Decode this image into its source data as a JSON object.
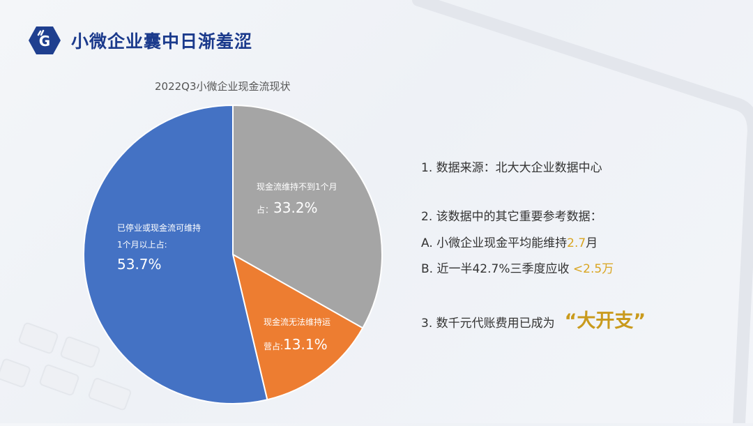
{
  "header": {
    "title": "小微企业囊中日渐羞涩",
    "logo_icon": "hexagon-hand-g-logo",
    "logo_color": "#1f3f8f"
  },
  "chart_data": {
    "type": "pie",
    "title": "2022Q3小微企业现金流现状",
    "start_angle_deg": 0,
    "direction": "clockwise",
    "slices": [
      {
        "name": "现金流维持不到1个月",
        "value": 33.2,
        "color": "#a5a5a5",
        "label_line1": "现金流维持不到1个月",
        "label_prefix": "占：",
        "label_value": "33.2%"
      },
      {
        "name": "现金流无法维持运营",
        "value": 13.1,
        "color": "#ed7d31",
        "label_line1": "现金流无法维持运",
        "label_prefix": "营占:",
        "label_value": "13.1%"
      },
      {
        "name": "已停业或现金流可维持1个月以上",
        "value": 53.7,
        "color": "#4472c4",
        "label_line1": "已停业或现金流可维持",
        "label_line2": "1个月以上占:",
        "label_value": "53.7%"
      }
    ],
    "legend": "none",
    "data_labels": "inside"
  },
  "notes": {
    "item1": "1. 数据来源：北大大企业数据中心",
    "item2": "2. 该数据中的其它重要参考数据：",
    "itemA_prefix": "A. 小微企业现金平均能维持",
    "itemA_value": "2.7",
    "itemA_suffix": "月",
    "itemB_prefix": "B. 近一半42.7%三季度应收 ",
    "itemB_value": "<2.5万",
    "item3_prefix": "3. 数千元代账费用已成为",
    "item3_highlight": "“大开支”",
    "highlight_color": "#d9a521"
  }
}
